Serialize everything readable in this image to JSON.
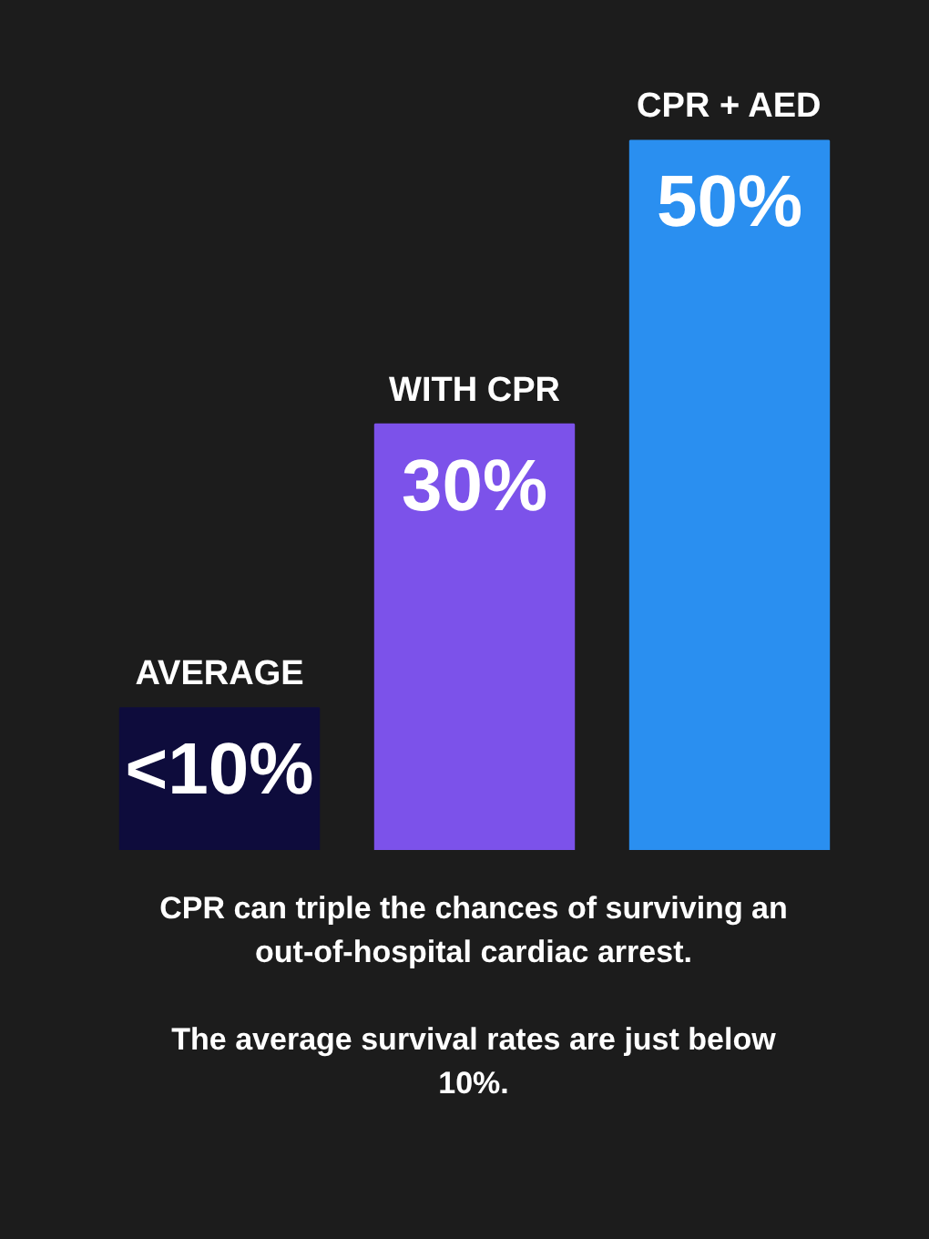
{
  "chart_data": {
    "type": "bar",
    "categories": [
      "AVERAGE",
      "WITH CPR",
      "CPR + AED"
    ],
    "values": [
      10,
      30,
      50
    ],
    "colors": [
      "#0e0c3c",
      "#7c52ea",
      "#2a8ff0"
    ],
    "value_labels": [
      "<10%",
      "30%",
      "50%"
    ],
    "annotations": [
      "CPR can triple the chances of surviving an out-of-hospital cardiac arrest.",
      "The average survival rates are just below 10%."
    ],
    "grid": false
  }
}
